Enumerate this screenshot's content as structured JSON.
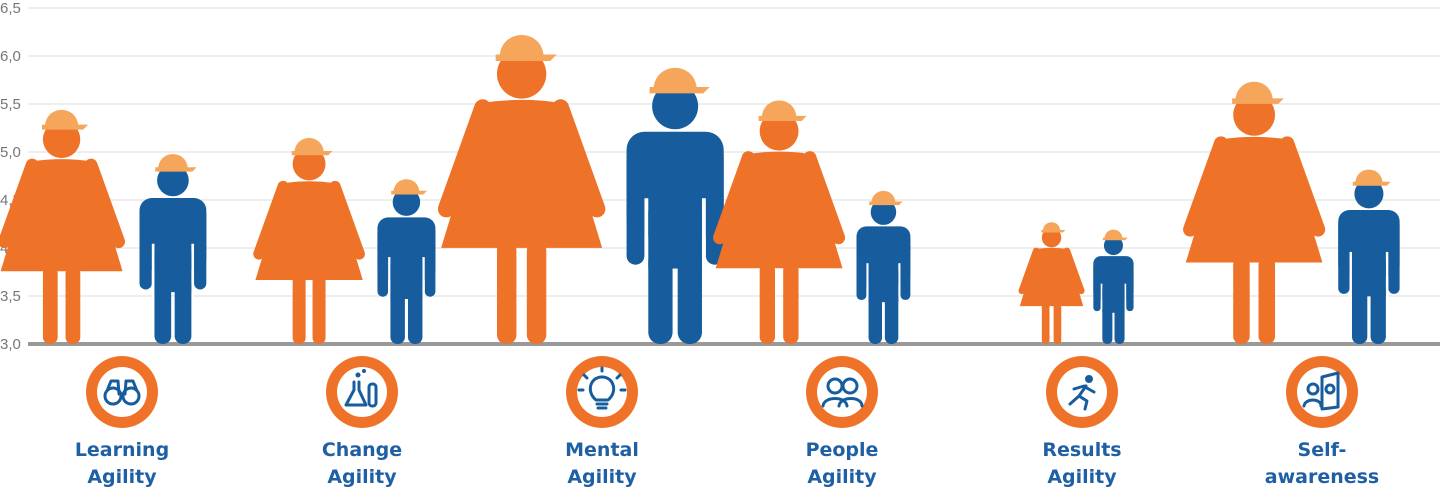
{
  "colors": {
    "female": "#ef7229",
    "male": "#175d9e",
    "helmet": "#f5a65b",
    "grid": "#dddddd",
    "baseline": "#999999",
    "label": "#1f5fa3",
    "icon_bg": "#ef7229"
  },
  "chart_data": {
    "type": "bar",
    "title": "",
    "xlabel": "",
    "ylabel": "",
    "ylim": [
      3.0,
      6.5
    ],
    "yticks": [
      "3,0",
      "3,5",
      "4,0",
      "4,5",
      "5,0",
      "5,5",
      "6,0",
      "6,5"
    ],
    "grid": true,
    "categories": [
      {
        "label_lines": [
          "Learning",
          "Agility"
        ],
        "icon": "binoculars-icon"
      },
      {
        "label_lines": [
          "Change",
          "Agility"
        ],
        "icon": "flask-icon"
      },
      {
        "label_lines": [
          "Mental",
          "Agility"
        ],
        "icon": "lightbulb-icon"
      },
      {
        "label_lines": [
          "People",
          "Agility"
        ],
        "icon": "people-icon"
      },
      {
        "label_lines": [
          "Results",
          "Agility"
        ],
        "icon": "runner-icon"
      },
      {
        "label_lines": [
          "Self-",
          "awareness"
        ],
        "icon": "mirror-icon"
      }
    ],
    "series": [
      {
        "values": [
          5.5,
          5.2,
          6.3,
          5.6,
          4.3,
          5.8
        ]
      },
      {
        "values": [
          4.96,
          4.7,
          5.85,
          4.58,
          4.18,
          4.8
        ]
      }
    ]
  }
}
